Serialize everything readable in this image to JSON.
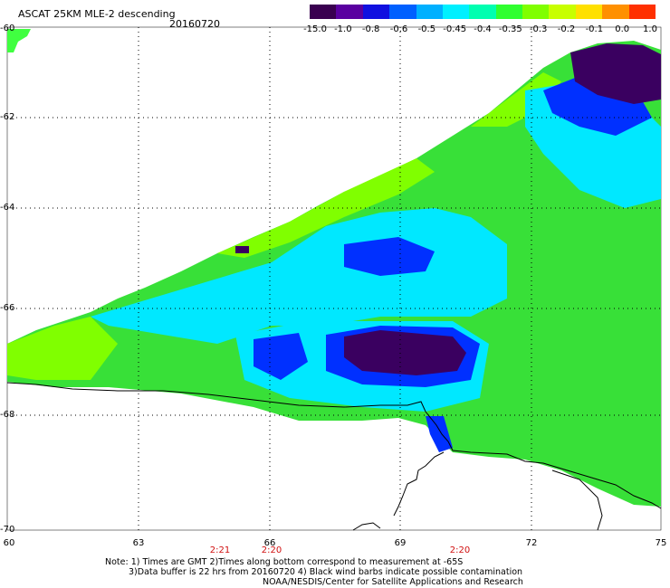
{
  "header": {
    "title": "ASCAT 25KM MLE-2 descending",
    "date": "20160720"
  },
  "colorbar": {
    "tick_labels": [
      "-15.0",
      "-1.0",
      "-0.8",
      "-0.6",
      "-0.5",
      "-0.45",
      "-0.4",
      "-0.35",
      "-0.3",
      "-0.2",
      "-0.1",
      "0.0",
      "1.0"
    ],
    "colors": [
      "#3a0050",
      "#5a00a0",
      "#1010e0",
      "#0060ff",
      "#00b0ff",
      "#00f0ff",
      "#00ffb0",
      "#30ff30",
      "#80ff00",
      "#c8ff00",
      "#ffe000",
      "#ff9000",
      "#ff3000"
    ]
  },
  "axes": {
    "lat_labels": [
      "-60",
      "-62",
      "-64",
      "-66",
      "-68",
      "-70"
    ],
    "lon_labels": [
      "60",
      "63",
      "66",
      "69",
      "72",
      "75"
    ]
  },
  "times": [
    "2:21",
    "2:20",
    "2:20"
  ],
  "notes": {
    "line1": "Note: 1) Times are GMT 2)Times along bottom correspond to measurement at -65S",
    "line2": "3)Data buffer is 22 hrs from 20160720 4) Black wind barbs indicate possible contamination",
    "line3": "NOAA/NESDIS/Center for Satellite Applications and Research"
  },
  "map_colors": {
    "green": "#38e038",
    "lime": "#80ff00",
    "cyan": "#00e8ff",
    "blue": "#0030ff",
    "purple": "#3a0060",
    "coast": "#000000"
  }
}
